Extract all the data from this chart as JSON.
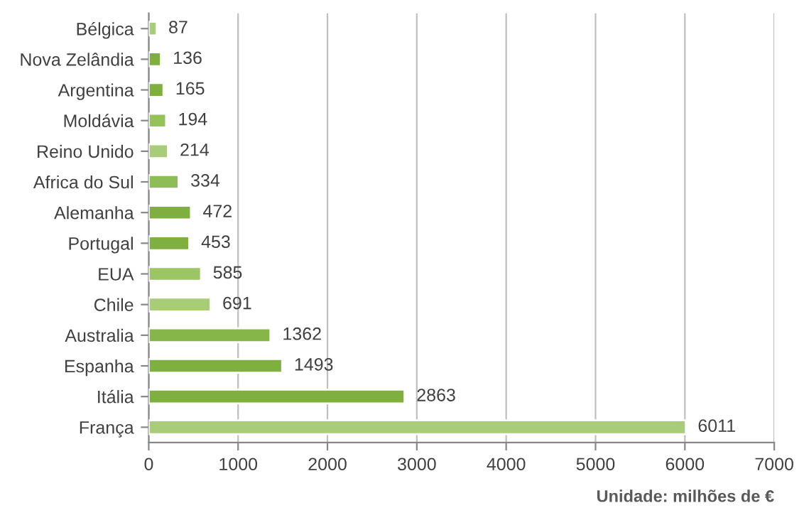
{
  "chart_data": {
    "type": "bar",
    "orientation": "horizontal",
    "xlabel": "Unidade: milhões de €",
    "categories": [
      "Bélgica",
      "Nova Zelândia",
      "Argentina",
      "Moldávia",
      "Reino Unido",
      "Africa do Sul",
      "Alemanha",
      "Portugal",
      "EUA",
      "Chile",
      "Australia",
      "Espanha",
      "Itália",
      "França"
    ],
    "values": [
      87,
      136,
      165,
      194,
      214,
      334,
      472,
      453,
      585,
      691,
      1362,
      1493,
      2863,
      6011
    ],
    "colors": [
      "#a8cc78",
      "#7fb03e",
      "#7fb03e",
      "#96c25a",
      "#a8cc78",
      "#8fbd55",
      "#7fb03e",
      "#7fb03e",
      "#9cc566",
      "#a8cc78",
      "#86b64a",
      "#7fb03e",
      "#7fb03e",
      "#a8cc78"
    ],
    "xlim": [
      0,
      7000
    ],
    "xticks": [
      0,
      1000,
      2000,
      3000,
      4000,
      5000,
      6000,
      7000
    ],
    "grid": "x",
    "data_labels": true
  }
}
